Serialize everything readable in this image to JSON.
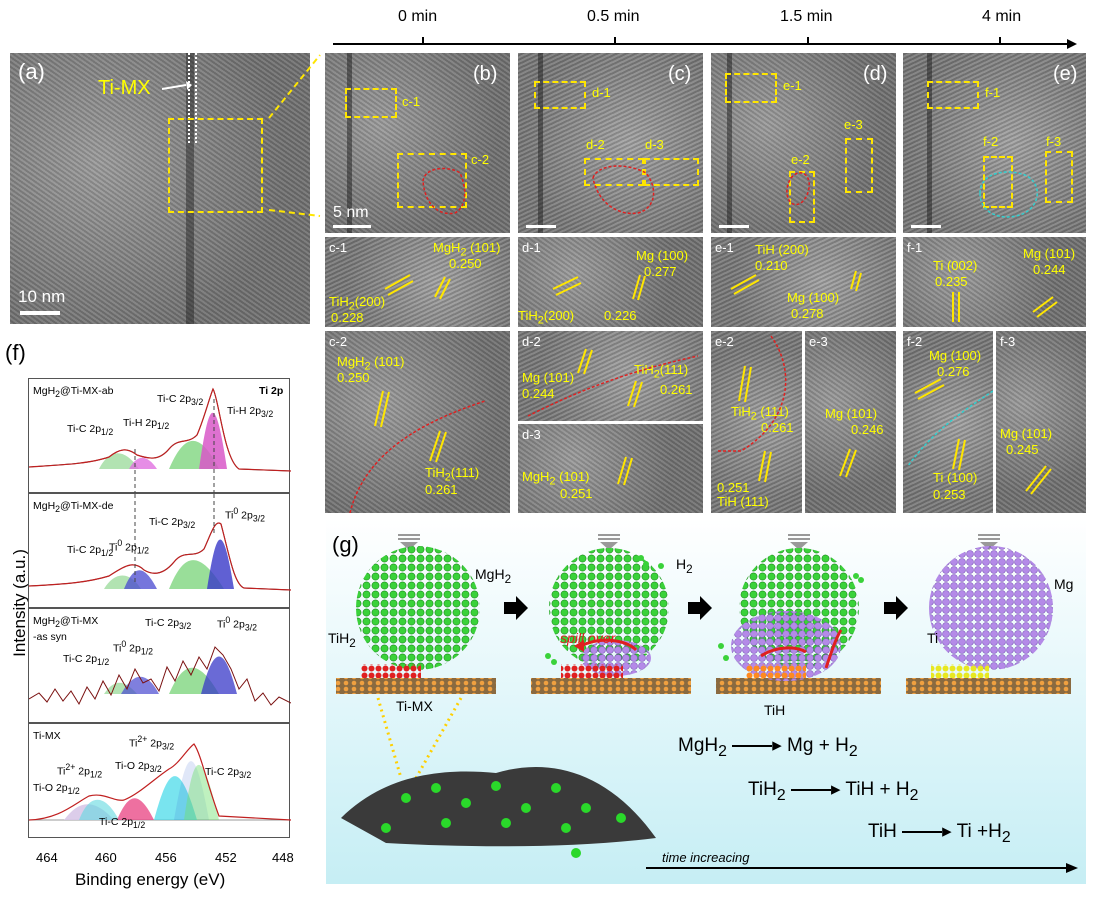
{
  "timeline": {
    "labels": [
      "0 min",
      "0.5 min",
      "1.5 min",
      "4 min"
    ]
  },
  "panels": {
    "a": {
      "tag": "(a)",
      "material": "Ti-MX",
      "scale": "10 nm"
    },
    "b": {
      "tag": "(b)",
      "scale": "5 nm",
      "boxes": [
        "c-1",
        "c-2"
      ]
    },
    "c": {
      "tag": "(c)",
      "boxes": [
        "d-1",
        "d-2",
        "d-3"
      ]
    },
    "d": {
      "tag": "(d)",
      "boxes": [
        "e-1",
        "e-2",
        "e-3"
      ]
    },
    "e": {
      "tag": "(e)",
      "boxes": [
        "f-1",
        "f-2",
        "f-3"
      ]
    },
    "f": {
      "tag": "(f)"
    },
    "g": {
      "tag": "(g)"
    }
  },
  "zooms": {
    "c1": {
      "id": "c-1",
      "l1": "MgH",
      "l1b": "2",
      "l1c": " (101)",
      "v1": "0.250",
      "l2": "TiH",
      "l2b": "2",
      "l2c": "(200)",
      "v2": "0.228"
    },
    "d1": {
      "id": "d-1",
      "l1": "Mg (100)",
      "v1": "0.277",
      "l2": "TiH",
      "l2b": "2",
      "l2c": "(200)",
      "v2": "0.226"
    },
    "e1": {
      "id": "e-1",
      "l1": "TiH (200)",
      "v1": "0.210",
      "l2": "Mg (100)",
      "v2": "0.278"
    },
    "f1": {
      "id": "f-1",
      "l1": "Ti (002)",
      "v1": "0.235",
      "l2": "Mg (101)",
      "v2": "0.244"
    },
    "c2": {
      "id": "c-2",
      "l1": "MgH",
      "l1b": "2",
      "l1c": " (101)",
      "v1": "0.250",
      "l2": "TiH",
      "l2b": "2",
      "l2c": "(111)",
      "v2": "0.261"
    },
    "d2": {
      "id": "d-2",
      "l1": "Mg (101)",
      "v1": "0.244",
      "l2": "TiH",
      "l2b": "2",
      "l2c": "(111)",
      "v2": "0.261"
    },
    "d3": {
      "id": "d-3",
      "l1": "MgH",
      "l1b": "2",
      "l1c": " (101)",
      "v1": "0.251"
    },
    "e2": {
      "id": "e-2",
      "l1": "TiH",
      "l1b": "2",
      "l1c": " (111)",
      "v1": "0.261",
      "l2": "TiH (111)",
      "v2": "0.251"
    },
    "e3": {
      "id": "e-3",
      "l1": "Mg (101)",
      "v1": "0.246"
    },
    "f2": {
      "id": "f-2",
      "l1": "Mg (100)",
      "v1": "0.276",
      "l2": "Ti (100)",
      "v2": "0.253"
    },
    "f3": {
      "id": "f-3",
      "l1": "Mg (101)",
      "v1": "0.245"
    }
  },
  "xps": {
    "ylabel": "Intensity (a.u.)",
    "xlabel": "Binding energy (eV)",
    "ticks": [
      "464",
      "460",
      "456",
      "452",
      "448"
    ],
    "corner": "Ti 2p",
    "panels": [
      {
        "name": "MgH",
        "sub": "2",
        "rest": "@Ti-MX-ab",
        "peaks": [
          "Ti-C 2p",
          "1/2",
          "Ti-H 2p",
          "1/2",
          "Ti-C 2p",
          "3/2",
          "Ti-H 2p",
          "3/2"
        ]
      },
      {
        "name": "MgH",
        "sub": "2",
        "rest": "@Ti-MX-de",
        "peaks": [
          "Ti-C 2p",
          "1/2",
          "Ti",
          "0",
          "2p",
          "1/2",
          "Ti-C 2p",
          "3/2",
          "Ti",
          "0",
          "2p",
          "3/2"
        ]
      },
      {
        "name": "MgH",
        "sub": "2",
        "rest": "@Ti-MX",
        "line2": "-as syn",
        "peaks": [
          "Ti-C 2p",
          "1/2",
          "Ti",
          "0",
          "2p",
          "1/2",
          "Ti-C 2p",
          "3/2",
          "Ti",
          "0",
          "2p",
          "3/2"
        ]
      },
      {
        "name": "Ti-MX",
        "peaks": [
          "Ti-O 2p",
          "1/2",
          "Ti",
          "2+",
          "2p",
          "1/2",
          "Ti-O 2p",
          "3/2",
          "Ti",
          "2+",
          "2p",
          "3/2",
          "Ti-C 2p",
          "3/2",
          "Ti-C 2p",
          "1/2"
        ]
      }
    ]
  },
  "schematic": {
    "mgh2": "MgH",
    "mgh2_sub": "2",
    "h2": "H",
    "h2_sub": "2",
    "tih2": "TiH",
    "tih2_sub": "2",
    "spill": "spill over",
    "timx": "Ti-MX",
    "tih": "TiH",
    "ti": "Ti",
    "mg": "Mg",
    "eq1": [
      "MgH",
      "2",
      "Mg + H",
      "2"
    ],
    "eq2": [
      "TiH",
      "2",
      "TiH + H",
      "2"
    ],
    "eq3": [
      "TiH",
      "Ti +H",
      "2"
    ],
    "time": "time increacing"
  },
  "colors": {
    "yellow": "#ffe600",
    "red": "#e02020",
    "cyan": "#30d0d0",
    "green": "#22cc22",
    "purple": "#9a6fd8",
    "bg": "#d6f3f8"
  }
}
